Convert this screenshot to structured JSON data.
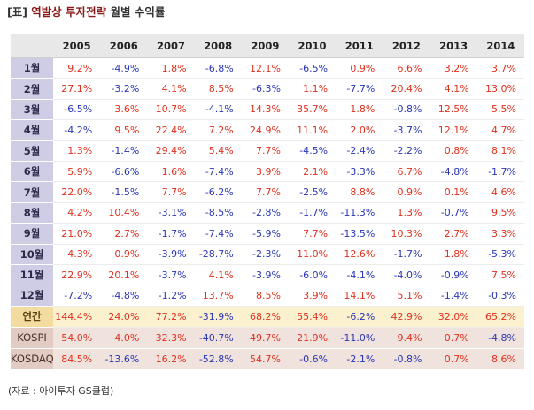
{
  "title": {
    "bracket": "[표]",
    "accent": "역발상 투자전략",
    "rest": "월별 수익률"
  },
  "colors": {
    "positive": "#e0301e",
    "negative": "#2a36b5"
  },
  "table": {
    "years": [
      "2005",
      "2006",
      "2007",
      "2008",
      "2009",
      "2010",
      "2011",
      "2012",
      "2013",
      "2014"
    ],
    "rows": [
      {
        "label": "1월",
        "kind": "month",
        "values": [
          "9.2%",
          "-4.9%",
          "1.8%",
          "-6.8%",
          "12.1%",
          "-6.5%",
          "0.9%",
          "6.6%",
          "3.2%",
          "3.7%"
        ]
      },
      {
        "label": "2월",
        "kind": "month",
        "values": [
          "27.1%",
          "-3.2%",
          "4.1%",
          "8.5%",
          "-6.3%",
          "1.1%",
          "-7.7%",
          "20.4%",
          "4.1%",
          "13.0%"
        ]
      },
      {
        "label": "3월",
        "kind": "month",
        "values": [
          "-6.5%",
          "3.6%",
          "10.7%",
          "-4.1%",
          "14.3%",
          "35.7%",
          "1.8%",
          "-0.8%",
          "12.5%",
          "5.5%"
        ]
      },
      {
        "label": "4월",
        "kind": "month",
        "values": [
          "-4.2%",
          "9.5%",
          "22.4%",
          "7.2%",
          "24.9%",
          "11.1%",
          "2.0%",
          "-3.7%",
          "12.1%",
          "4.7%"
        ]
      },
      {
        "label": "5월",
        "kind": "month",
        "values": [
          "1.3%",
          "-1.4%",
          "29.4%",
          "5.4%",
          "7.7%",
          "-4.5%",
          "-2.4%",
          "-2.2%",
          "0.8%",
          "8.1%"
        ]
      },
      {
        "label": "6월",
        "kind": "month",
        "values": [
          "5.9%",
          "-6.6%",
          "1.6%",
          "-7.4%",
          "3.9%",
          "2.1%",
          "-3.3%",
          "6.7%",
          "-4.8%",
          "-1.7%"
        ]
      },
      {
        "label": "7월",
        "kind": "month",
        "values": [
          "22.0%",
          "-1.5%",
          "7.7%",
          "-6.2%",
          "7.7%",
          "-2.5%",
          "8.8%",
          "0.9%",
          "0.1%",
          "4.6%"
        ]
      },
      {
        "label": "8월",
        "kind": "month",
        "values": [
          "4.2%",
          "10.4%",
          "-3.1%",
          "-8.5%",
          "-2.8%",
          "-1.7%",
          "-11.3%",
          "1.3%",
          "-0.7%",
          "9.5%"
        ]
      },
      {
        "label": "9월",
        "kind": "month",
        "values": [
          "21.0%",
          "2.7%",
          "-1.7%",
          "-7.4%",
          "-5.9%",
          "7.7%",
          "-13.5%",
          "10.3%",
          "2.7%",
          "3.3%"
        ]
      },
      {
        "label": "10월",
        "kind": "month",
        "values": [
          "4.3%",
          "0.9%",
          "-3.9%",
          "-28.7%",
          "-2.3%",
          "11.0%",
          "12.6%",
          "-1.7%",
          "1.8%",
          "-5.3%"
        ]
      },
      {
        "label": "11월",
        "kind": "month",
        "values": [
          "22.9%",
          "20.1%",
          "-3.7%",
          "4.1%",
          "-3.9%",
          "-6.0%",
          "-4.1%",
          "-4.0%",
          "-0.9%",
          "7.5%"
        ]
      },
      {
        "label": "12월",
        "kind": "month",
        "values": [
          "-7.2%",
          "-4.8%",
          "-1.2%",
          "13.7%",
          "8.5%",
          "3.9%",
          "14.1%",
          "5.1%",
          "-1.4%",
          "-0.3%"
        ]
      },
      {
        "label": "연간",
        "kind": "annual",
        "values": [
          "144.4%",
          "24.0%",
          "77.2%",
          "-31.9%",
          "68.2%",
          "55.4%",
          "-6.2%",
          "42.9%",
          "32.0%",
          "65.2%"
        ]
      },
      {
        "label": "KOSPI",
        "kind": "bench",
        "values": [
          "54.0%",
          "4.0%",
          "32.3%",
          "-40.7%",
          "49.7%",
          "21.9%",
          "-11.0%",
          "9.4%",
          "0.7%",
          "-4.8%"
        ]
      },
      {
        "label": "KOSDAQ",
        "kind": "bench",
        "values": [
          "84.5%",
          "-13.6%",
          "16.2%",
          "-52.8%",
          "54.7%",
          "-0.6%",
          "-2.1%",
          "-0.8%",
          "0.7%",
          "8.6%"
        ]
      }
    ]
  },
  "source": "(자료 : 아이투자 GS클럽)"
}
